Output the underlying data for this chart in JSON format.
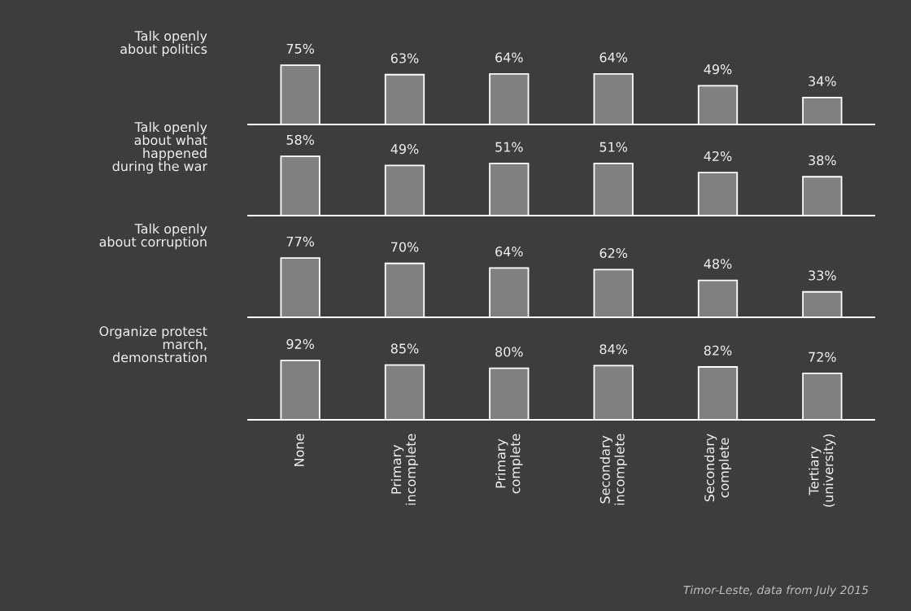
{
  "chart_data": [
    {
      "type": "bar",
      "title": "Talk openly\nabout politics",
      "categories": [
        null,
        null,
        null,
        null,
        null,
        null
      ],
      "color": "#808080",
      "values": [
        75,
        63,
        64,
        64,
        49,
        34
      ],
      "data_labels": true,
      "value_labels": [
        "75%",
        "63%",
        "64%",
        "64%",
        "49%",
        "34%"
      ],
      "tick_labels": false
    },
    {
      "type": "bar",
      "title": "Talk openly\nabout what\nhappened\nduring the war",
      "categories": [
        null,
        null,
        null,
        null,
        null,
        null
      ],
      "color": "#808080",
      "values": [
        58,
        49,
        51,
        51,
        42,
        38
      ],
      "data_labels": true,
      "value_labels": [
        "58%",
        "49%",
        "51%",
        "51%",
        "42%",
        "38%"
      ],
      "tick_labels": false
    },
    {
      "type": "bar",
      "title": "Talk openly\nabout corruption",
      "categories": [
        null,
        null,
        null,
        null,
        null,
        null
      ],
      "color": "#808080",
      "values": [
        77,
        70,
        64,
        62,
        48,
        33
      ],
      "data_labels": true,
      "value_labels": [
        "77%",
        "70%",
        "64%",
        "62%",
        "48%",
        "33%"
      ],
      "tick_labels": false
    },
    {
      "type": "bar",
      "title": "Organize protest\nmarch,\ndemonstration",
      "categories": [
        "None",
        "Primary\nincomplete",
        "Primary\ncomplete",
        "Secondary\nincomplete",
        "Secondary\ncomplete",
        "Tertiary\n(university)"
      ],
      "color": "#808080",
      "values": [
        92,
        85,
        80,
        84,
        82,
        72
      ],
      "data_labels": true,
      "value_labels": [
        "92%",
        "85%",
        "80%",
        "84%",
        "82%",
        "72%"
      ],
      "tick_labels": "x",
      "annotations": [
        "Timor-Leste, data from July 2015"
      ]
    }
  ]
}
